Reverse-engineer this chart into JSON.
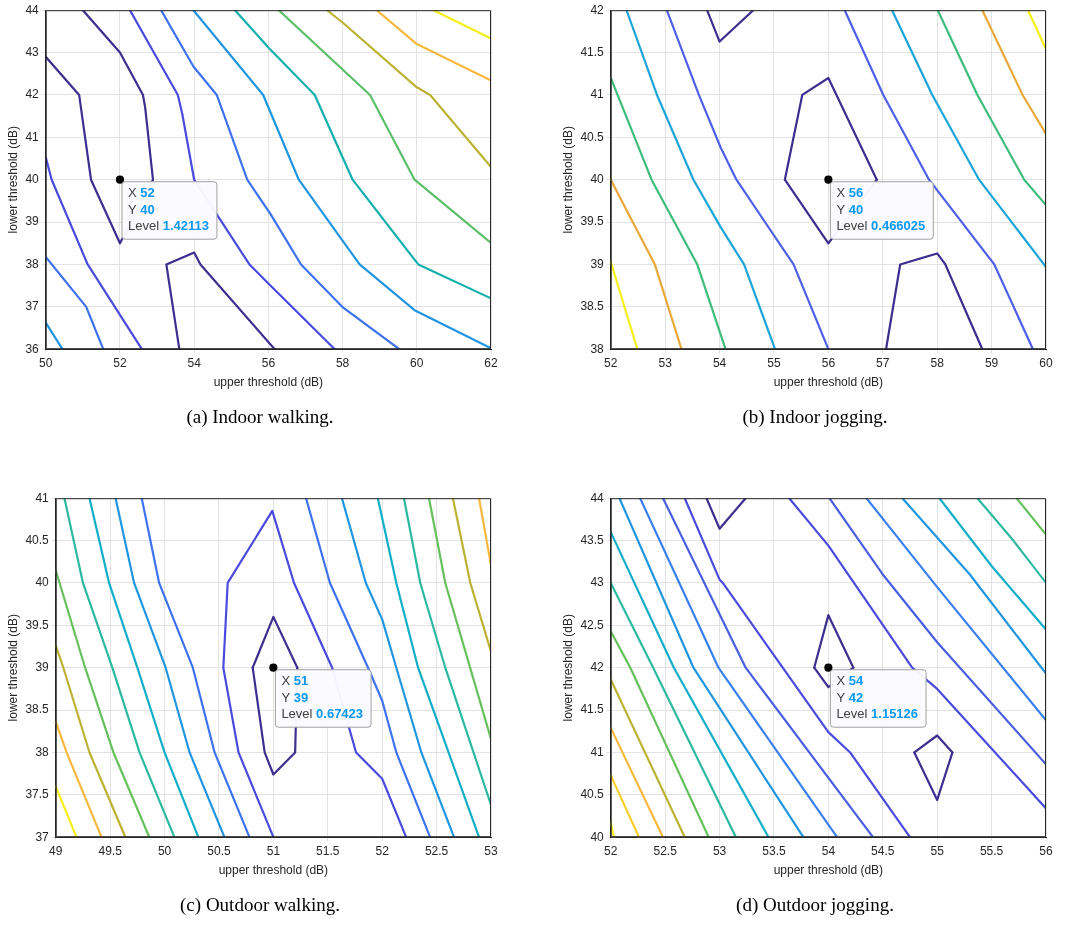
{
  "chart_data": [
    {
      "type": "line",
      "title": "(a) Indoor walking.",
      "xlabel": "upper threshold (dB)",
      "ylabel": "lower threshold (dB)",
      "xlim": [
        50,
        62
      ],
      "xticks": [
        50,
        52,
        54,
        56,
        58,
        60,
        62
      ],
      "ylim": [
        36,
        44
      ],
      "yticks": [
        36,
        37,
        38,
        39,
        40,
        41,
        42,
        43,
        44
      ],
      "grid": true,
      "legend": false,
      "marker": "none",
      "line_style": "solid",
      "annotations": [
        {
          "text": "X 52\nY 40\nLevel 1.42113",
          "x": 52,
          "y": 40
        }
      ],
      "series": [
        {
          "color": "#3b2f8f",
          "x": [
            51.0,
            52,
            52.62,
            52.68,
            52.89,
            52,
            51.22,
            50.9,
            50
          ],
          "values": [
            44,
            43,
            42,
            41.7,
            40,
            38.5,
            40,
            42,
            42.9
          ]
        },
        {
          "color": "#3b2f8f",
          "x": [
            53.6,
            53.25,
            54,
            54.17,
            56.17
          ],
          "values": [
            36,
            38,
            38.28,
            38,
            36
          ]
        },
        {
          "color": "#4a4bdc",
          "x": [
            52.27,
            53.56,
            53.68,
            54.0,
            55.49,
            56.0,
            57.79
          ],
          "values": [
            44,
            42,
            41.55,
            40,
            38,
            37.55,
            36
          ]
        },
        {
          "color": "#4a4bdc",
          "x": [
            50,
            50.16,
            51.13,
            52.59
          ],
          "values": [
            40.53,
            40,
            38,
            36
          ]
        },
        {
          "color": "#3f72ef",
          "x": [
            53.11,
            53.98,
            54.61,
            55.43,
            56.05,
            56.88,
            57.99,
            59.53
          ],
          "values": [
            44,
            42.67,
            42,
            40,
            39.2,
            38,
            37,
            36
          ]
        },
        {
          "color": "#3f72ef",
          "x": [
            50,
            51.09,
            51.55
          ],
          "values": [
            38.18,
            37,
            36
          ]
        },
        {
          "color": "#2196e0",
          "x": [
            53.98,
            55.86,
            56.82,
            58.46,
            59.94,
            62
          ],
          "values": [
            44,
            42,
            40,
            38,
            36.92,
            36.02
          ]
        },
        {
          "color": "#2196e0",
          "x": [
            50,
            50.45
          ],
          "values": [
            36.63,
            36
          ]
        },
        {
          "color": "#12b0ac",
          "x": [
            55.1,
            56,
            57.25,
            58.27,
            60.04,
            62
          ],
          "values": [
            44,
            43.12,
            42,
            40,
            38,
            37.2
          ]
        },
        {
          "color": "#5cbf6a",
          "x": [
            56.28,
            58.74,
            59.94,
            62
          ],
          "values": [
            44,
            42,
            40,
            38.51
          ]
        },
        {
          "color": "#bcb233",
          "x": [
            57.58,
            58,
            60,
            60.36,
            62
          ],
          "values": [
            44,
            43.71,
            42.18,
            42,
            40.3
          ]
        },
        {
          "color": "#f7b840",
          "x": [
            58.92,
            60,
            62
          ],
          "values": [
            44,
            43.2,
            42.34
          ]
        },
        {
          "color": "#f5ef1a",
          "x": [
            60.45,
            62
          ],
          "values": [
            44,
            43.33
          ]
        },
        {
          "type": "scatter",
          "marker": "circle",
          "color": "#000000",
          "x": [
            52
          ],
          "values": [
            40
          ]
        }
      ]
    },
    {
      "type": "line",
      "title": "(b) Indoor jogging.",
      "xlabel": "upper threshold (dB)",
      "ylabel": "lower threshold (dB)",
      "xlim": [
        52,
        60
      ],
      "xticks": [
        52,
        53,
        54,
        55,
        56,
        57,
        58,
        59,
        60
      ],
      "ylim": [
        38,
        42
      ],
      "yticks": [
        38,
        38.5,
        39,
        39.5,
        40,
        40.5,
        41,
        41.5,
        42
      ],
      "grid": true,
      "legend": false,
      "marker": "none",
      "line_style": "solid",
      "annotations": [
        {
          "text": "X 56\nY 40\nLevel 0.466025",
          "x": 56,
          "y": 40
        }
      ],
      "series": [
        {
          "color": "#3b2f8f",
          "x": [
            53.77,
            54,
            54.62
          ],
          "values": [
            42,
            41.63,
            42
          ]
        },
        {
          "color": "#3b2f8f",
          "x": [
            55.2,
            55.52,
            56,
            56.89
          ],
          "values": [
            40,
            41,
            41.2,
            40
          ]
        },
        {
          "color": "#3b2f8f",
          "x": [
            55.2,
            56,
            56.89
          ],
          "values": [
            40,
            39.25,
            40
          ]
        },
        {
          "color": "#3b2f8f",
          "x": [
            57.06,
            57.32,
            58,
            58.15,
            58.83
          ],
          "values": [
            38,
            39,
            39.13,
            39,
            38
          ]
        },
        {
          "color": "#4f5fe8",
          "x": [
            53.03,
            53.62,
            54.02,
            54.31,
            55.36,
            56
          ],
          "values": [
            42,
            41,
            40.38,
            40,
            39,
            38
          ]
        },
        {
          "color": "#4f5fe8",
          "x": [
            56.3,
            57.01,
            57.85,
            59.05,
            59.76
          ],
          "values": [
            42,
            41,
            40,
            39,
            38
          ]
        },
        {
          "color": "#1ca5d8",
          "x": [
            52.29,
            52.85,
            53.52,
            54.02,
            54.45,
            55.02
          ],
          "values": [
            42,
            41,
            40,
            39.44,
            39,
            38
          ]
        },
        {
          "color": "#1ca5d8",
          "x": [
            57.17,
            57.91,
            58.77,
            60
          ],
          "values": [
            42,
            41,
            40,
            38.97
          ]
        },
        {
          "color": "#3ebc7c",
          "x": [
            52,
            52.75,
            53.59,
            54.11
          ],
          "values": [
            41.2,
            40,
            39,
            38
          ]
        },
        {
          "color": "#3ebc7c",
          "x": [
            58.01,
            58.74,
            59.6,
            60
          ],
          "values": [
            42,
            41,
            40,
            39.7
          ]
        },
        {
          "color": "#e8a93a",
          "x": [
            52,
            52.81,
            53.3
          ],
          "values": [
            40,
            39,
            38
          ]
        },
        {
          "color": "#e8a93a",
          "x": [
            58.83,
            59.57,
            60
          ],
          "values": [
            42,
            41,
            40.54
          ]
        },
        {
          "color": "#f5ef1a",
          "x": [
            52,
            52.49
          ],
          "values": [
            39.03,
            38
          ]
        },
        {
          "color": "#f5ef1a",
          "x": [
            59.67,
            60
          ],
          "values": [
            42,
            41.54
          ]
        },
        {
          "type": "scatter",
          "marker": "circle",
          "color": "#000000",
          "x": [
            56
          ],
          "values": [
            40
          ]
        }
      ]
    },
    {
      "type": "line",
      "title": "(c) Outdoor walking.",
      "xlabel": "upper threshold (dB)",
      "ylabel": "lower threshold (dB)",
      "xlim": [
        49,
        53
      ],
      "xticks": [
        49,
        49.5,
        50,
        50.5,
        51,
        51.5,
        52,
        52.5,
        53
      ],
      "ylim": [
        37,
        41
      ],
      "yticks": [
        37,
        37.5,
        38,
        38.5,
        39,
        39.5,
        40,
        40.5,
        41
      ],
      "grid": true,
      "legend": false,
      "marker": "none",
      "line_style": "solid",
      "annotations": [
        {
          "text": "X 51\nY 39\nLevel 0.67423",
          "x": 51,
          "y": 39
        }
      ],
      "series": [
        {
          "color": "#3b2f8f",
          "x": [
            50.81,
            51,
            51.22
          ],
          "values": [
            39,
            39.6,
            39
          ]
        },
        {
          "color": "#3b2f8f",
          "x": [
            50.81,
            50.92,
            51,
            51.2,
            51.22
          ],
          "values": [
            39,
            38,
            37.74,
            38,
            39
          ]
        },
        {
          "color": "#4a4bdc",
          "x": [
            51,
            50.68,
            50.54,
            50.58,
            50.99,
            51.19,
            51.54,
            51.76,
            52,
            52.22
          ],
          "values": [
            37,
            38,
            39,
            40,
            40.85,
            40,
            39,
            38,
            37.69,
            37
          ]
        },
        {
          "color": "#3f72ef",
          "x": [
            51.3,
            51.52,
            51.87,
            52,
            52.13,
            52.44
          ],
          "values": [
            41,
            40,
            39,
            38.61,
            38,
            37
          ]
        },
        {
          "color": "#2196e0",
          "x": [
            51.63,
            51.85,
            52,
            52.13,
            52.36,
            52.66
          ],
          "values": [
            41,
            40,
            39.57,
            39,
            38,
            37
          ]
        },
        {
          "color": "#12aec8",
          "x": [
            51.96,
            52.13,
            52.33,
            52.61,
            52.89
          ],
          "values": [
            41,
            40,
            39,
            38,
            37
          ]
        },
        {
          "color": "#2cb9a0",
          "x": [
            52.2,
            52.35,
            52.58,
            53
          ],
          "values": [
            41,
            40,
            39,
            37.38
          ]
        },
        {
          "color": "#66c05c",
          "x": [
            52.43,
            52.58,
            53
          ],
          "values": [
            41,
            40,
            38.16
          ]
        },
        {
          "color": "#bcb233",
          "x": [
            52.65,
            52.81,
            53
          ],
          "values": [
            41,
            40,
            39.19
          ]
        },
        {
          "color": "#f7b840",
          "x": [
            52.89,
            53
          ],
          "values": [
            41,
            40.21
          ]
        },
        {
          "color": "#3f72ef",
          "x": [
            49.79,
            49.95,
            50.26,
            50.46,
            50.78
          ],
          "values": [
            41,
            40,
            39,
            38,
            37
          ]
        },
        {
          "color": "#2196e0",
          "x": [
            49.55,
            49.72,
            50.01,
            50.23,
            50.55
          ],
          "values": [
            41,
            40,
            39,
            38,
            37
          ]
        },
        {
          "color": "#12aec8",
          "x": [
            49.31,
            49.49,
            49.75,
            50,
            50.31
          ],
          "values": [
            41,
            40,
            39,
            38,
            37
          ]
        },
        {
          "color": "#2cb9a0",
          "x": [
            49.08,
            49.25,
            49.52,
            49.77,
            50.09
          ],
          "values": [
            41,
            40,
            39,
            38,
            37
          ]
        },
        {
          "color": "#66c05c",
          "x": [
            49,
            49.27,
            49.53,
            49.86
          ],
          "values": [
            40.15,
            39,
            38,
            37
          ]
        },
        {
          "color": "#bcb233",
          "x": [
            49,
            49.07,
            49.31,
            49.64
          ],
          "values": [
            39.26,
            39,
            38,
            37
          ]
        },
        {
          "color": "#f7b840",
          "x": [
            49,
            49.1,
            49.42
          ],
          "values": [
            38.36,
            38,
            37
          ]
        },
        {
          "color": "#f5ef1a",
          "x": [
            49,
            49.19
          ],
          "values": [
            37.6,
            37
          ]
        },
        {
          "type": "scatter",
          "marker": "circle",
          "color": "#000000",
          "x": [
            51
          ],
          "values": [
            39
          ]
        }
      ]
    },
    {
      "type": "line",
      "title": "(d) Outdoor jogging.",
      "xlabel": "upper threshold (dB)",
      "ylabel": "lower threshold (dB)",
      "xlim": [
        52,
        56
      ],
      "xticks": [
        52,
        52.5,
        53,
        53.5,
        54,
        54.5,
        55,
        55.5,
        56
      ],
      "ylim": [
        40,
        44
      ],
      "yticks": [
        40,
        40.5,
        41,
        41.5,
        42,
        42.5,
        43,
        43.5,
        44
      ],
      "grid": true,
      "legend": false,
      "marker": "none",
      "line_style": "solid",
      "annotations": [
        {
          "text": "X 54\nY 42\nLevel 1.15126",
          "x": 54,
          "y": 42
        }
      ],
      "series": [
        {
          "color": "#3b2f8f",
          "x": [
            52.88,
            53,
            53.24
          ],
          "values": [
            44,
            43.64,
            44
          ]
        },
        {
          "color": "#3b2f8f",
          "x": [
            53.87,
            54,
            54.23
          ],
          "values": [
            42,
            42.62,
            42
          ]
        },
        {
          "color": "#3b2f8f",
          "x": [
            53.87,
            54,
            54.23
          ],
          "values": [
            42,
            41.77,
            42
          ]
        },
        {
          "color": "#3b2f8f",
          "x": [
            54.79,
            55,
            55.14
          ],
          "values": [
            41,
            41.2,
            41
          ]
        },
        {
          "color": "#3b2f8f",
          "x": [
            54.79,
            55,
            55.14
          ],
          "values": [
            41,
            40.44,
            41
          ]
        },
        {
          "color": "#4a4bdc",
          "x": [
            52.68,
            53,
            53.03,
            54,
            54.2,
            54.75
          ],
          "values": [
            44,
            43.04,
            43,
            41.24,
            41,
            40
          ]
        },
        {
          "color": "#4a4bdc",
          "x": [
            53.64,
            54,
            54.77,
            55,
            56
          ],
          "values": [
            44,
            43.44,
            42,
            41.75,
            40.34
          ]
        },
        {
          "color": "#4a5fe0",
          "x": [
            54.01,
            54.5,
            55,
            56
          ],
          "values": [
            44,
            43.1,
            42.3,
            40.86
          ]
        },
        {
          "color": "#3a80ee",
          "x": [
            54.35,
            55,
            56
          ],
          "values": [
            44,
            42.95,
            41.38
          ]
        },
        {
          "color": "#2196e0",
          "x": [
            54.68,
            55.3,
            56
          ],
          "values": [
            44,
            43.1,
            41.93
          ]
        },
        {
          "color": "#12aec8",
          "x": [
            55.02,
            55.5,
            56
          ],
          "values": [
            44,
            43.2,
            42.45
          ]
        },
        {
          "color": "#2cb9a0",
          "x": [
            55.37,
            55.7,
            56
          ],
          "values": [
            44,
            43.5,
            43
          ]
        },
        {
          "color": "#66c05c",
          "x": [
            55.73,
            56
          ],
          "values": [
            44,
            43.57
          ]
        },
        {
          "color": "#4a5fe0",
          "x": [
            52.48,
            53.24,
            54.41
          ],
          "values": [
            44,
            42,
            40
          ]
        },
        {
          "color": "#3a80ee",
          "x": [
            52.27,
            52.99,
            54.08
          ],
          "values": [
            44,
            42,
            40
          ]
        },
        {
          "color": "#2196e0",
          "x": [
            52.08,
            52.76,
            53.77
          ],
          "values": [
            44,
            42,
            40
          ]
        },
        {
          "color": "#12aec8",
          "x": [
            52,
            52.58,
            53.45
          ],
          "values": [
            43.6,
            42,
            40
          ]
        },
        {
          "color": "#2cb9a0",
          "x": [
            52,
            52.39,
            53.15
          ],
          "values": [
            43,
            42,
            40
          ]
        },
        {
          "color": "#66c05c",
          "x": [
            52,
            52.18,
            52.9
          ],
          "values": [
            42.43,
            42,
            40
          ]
        },
        {
          "color": "#bcb233",
          "x": [
            52,
            52.68
          ],
          "values": [
            41.86,
            40
          ]
        },
        {
          "color": "#f7b840",
          "x": [
            52,
            52.48
          ],
          "values": [
            41.29,
            40
          ]
        },
        {
          "color": "#f6d02a",
          "x": [
            52,
            52.26
          ],
          "values": [
            40.73,
            40
          ]
        },
        {
          "color": "#f5ef1a",
          "x": [
            52,
            52.03
          ],
          "values": [
            40.17,
            40
          ]
        },
        {
          "type": "scatter",
          "marker": "circle",
          "color": "#000000",
          "x": [
            54
          ],
          "values": [
            42
          ]
        }
      ]
    }
  ]
}
